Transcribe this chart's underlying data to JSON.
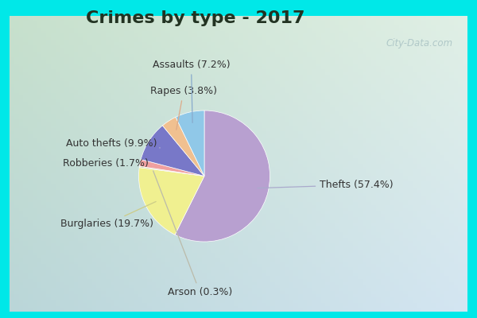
{
  "title": "Crimes by type - 2017",
  "labels": [
    "Thefts",
    "Burglaries",
    "Arson",
    "Robberies",
    "Auto thefts",
    "Rapes",
    "Assaults"
  ],
  "display_labels": [
    "Thefts (57.4%)",
    "Burglaries (19.7%)",
    "Arson (0.3%)",
    "Robberies (1.7%)",
    "Auto thefts (9.9%)",
    "Rapes (3.8%)",
    "Assaults (7.2%)"
  ],
  "values": [
    57.4,
    19.7,
    0.3,
    1.7,
    9.9,
    3.8,
    7.2
  ],
  "colors": [
    "#b8a0d0",
    "#f0f090",
    "#d0d0a0",
    "#f0a0a0",
    "#7878c8",
    "#f0c090",
    "#90c8e8"
  ],
  "border_color": "#00e8e8",
  "border_width": 8,
  "bg_color_tl": "#a0d8c0",
  "bg_color_br": "#d8ecd8",
  "title_fontsize": 16,
  "label_fontsize": 9,
  "watermark": "City-Data.com",
  "annot_positions": [
    [
      1.42,
      -0.15,
      "left"
    ],
    [
      -1.55,
      -0.6,
      "left"
    ],
    [
      0.05,
      -1.38,
      "center"
    ],
    [
      -1.52,
      0.1,
      "left"
    ],
    [
      -1.48,
      0.32,
      "left"
    ],
    [
      -0.52,
      0.92,
      "left"
    ],
    [
      -0.05,
      1.22,
      "center"
    ]
  ],
  "arrow_colors": [
    "#aaaacc",
    "#cccc88",
    "#bbbbaa",
    "#ffaaaa",
    "#aaaacc",
    "#ddaa88",
    "#88aacc"
  ]
}
